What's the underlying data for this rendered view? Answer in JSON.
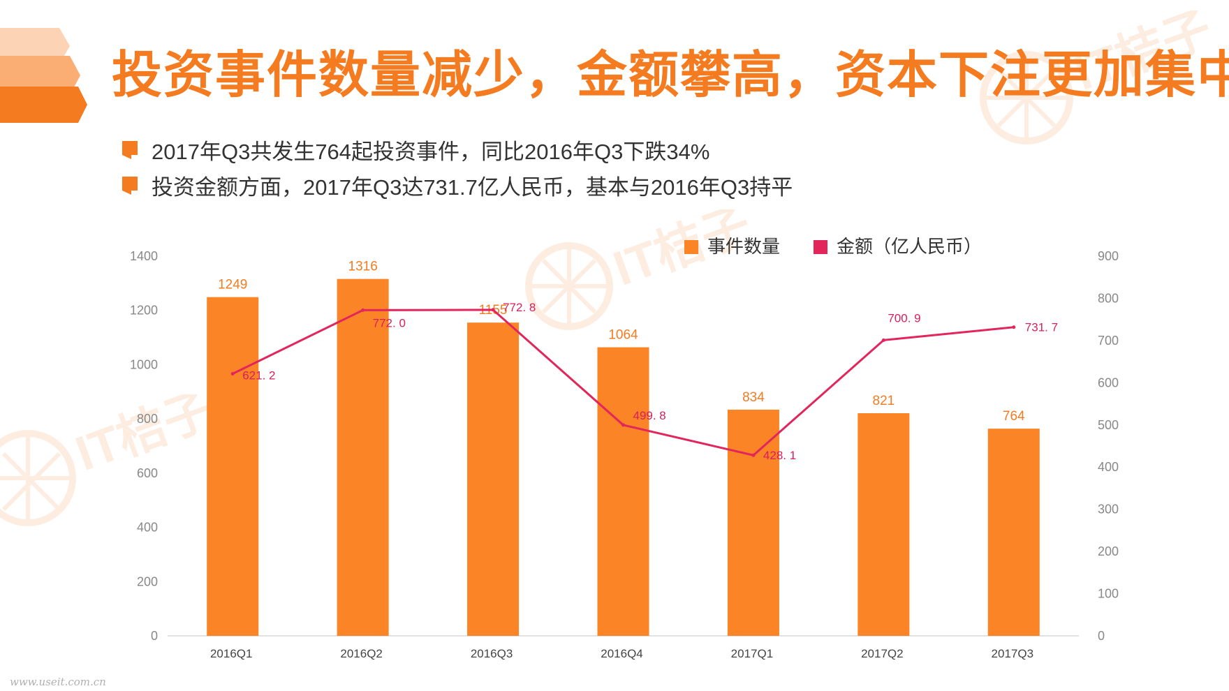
{
  "title": "投资事件数量减少，金额攀高，资本下注更加集中",
  "bullets": [
    "2017年Q3共发生764起投资事件，同比2016年Q3下跌34%",
    "投资金额方面，2017年Q3达731.7亿人民币，基本与2016年Q3持平"
  ],
  "watermark": "IT桔子",
  "footer": "www.useit.com.cn",
  "colors": {
    "accent": "#f47b20",
    "bar": "#fb8427",
    "line": "#e2265c",
    "bar_label": "#f47b20",
    "line_label": "#d81e5b"
  },
  "chart_data": {
    "type": "bar",
    "categories": [
      "2016Q1",
      "2016Q2",
      "2016Q3",
      "2016Q4",
      "2017Q1",
      "2017Q2",
      "2017Q3"
    ],
    "series": [
      {
        "name": "事件数量",
        "type": "bar",
        "axis": "left",
        "values": [
          1249,
          1316,
          1155,
          1064,
          834,
          821,
          764
        ]
      },
      {
        "name": "金额（亿人民币）",
        "type": "line",
        "axis": "right",
        "values": [
          621.2,
          772.0,
          772.8,
          499.8,
          428.1,
          700.9,
          731.7
        ],
        "labels": [
          "621. 2",
          "772. 0",
          "772. 8",
          "499. 8",
          "428. 1",
          "700. 9",
          "731. 7"
        ]
      }
    ],
    "legend": [
      "事件数量",
      "金额（亿人民币）"
    ],
    "legend_position": "top-right",
    "y_left": {
      "min": 0,
      "max": 1400,
      "ticks": [
        0,
        200,
        400,
        600,
        800,
        1000,
        1200,
        1400
      ]
    },
    "y_right": {
      "min": 0,
      "max": 900,
      "ticks": [
        0,
        100,
        200,
        300,
        400,
        500,
        600,
        700,
        800,
        900
      ]
    },
    "grid": false
  }
}
